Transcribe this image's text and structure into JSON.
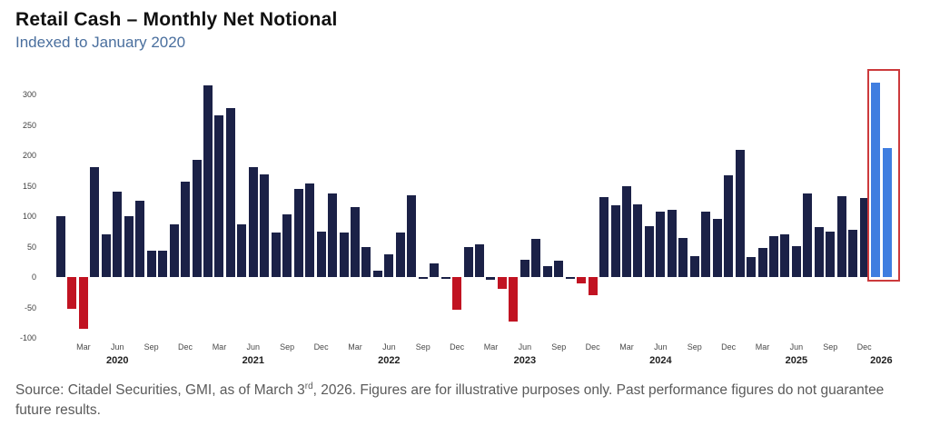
{
  "header": {
    "title": "Retail Cash – Monthly Net Notional",
    "subtitle": "Indexed to January 2020"
  },
  "chart_data": {
    "type": "bar",
    "title": "Retail Cash – Monthly Net Notional",
    "subtitle": "Indexed to January 2020",
    "x_start": "Jan 2020",
    "x_frequency": "monthly",
    "ylim": [
      -100,
      325
    ],
    "yticks": [
      300,
      250,
      200,
      150,
      100,
      50,
      0,
      -50,
      -100
    ],
    "grid": false,
    "legend_position": "none",
    "values": [
      100,
      -52,
      -85,
      180,
      70,
      140,
      100,
      125,
      44,
      44,
      86,
      157,
      193,
      315,
      265,
      278,
      86,
      180,
      169,
      73,
      103,
      145,
      154,
      74,
      137,
      73,
      115,
      50,
      10,
      38,
      73,
      135,
      -2,
      22,
      -2,
      -54,
      50,
      53,
      -4,
      -19,
      -73,
      28,
      63,
      18,
      27,
      -2,
      -10,
      -30,
      131,
      118,
      150,
      120,
      84,
      108,
      111,
      64,
      35,
      107,
      96,
      167,
      209,
      33,
      48,
      67,
      70,
      51,
      138,
      82,
      74,
      133,
      77,
      130,
      320,
      212
    ],
    "xticks": [
      {
        "index": 2,
        "label": "Mar"
      },
      {
        "index": 5,
        "label": "Jun"
      },
      {
        "index": 8,
        "label": "Sep"
      },
      {
        "index": 11,
        "label": "Dec"
      },
      {
        "index": 14,
        "label": "Mar"
      },
      {
        "index": 17,
        "label": "Jun"
      },
      {
        "index": 20,
        "label": "Sep"
      },
      {
        "index": 23,
        "label": "Dec"
      },
      {
        "index": 26,
        "label": "Mar"
      },
      {
        "index": 29,
        "label": "Jun"
      },
      {
        "index": 32,
        "label": "Sep"
      },
      {
        "index": 35,
        "label": "Dec"
      },
      {
        "index": 38,
        "label": "Mar"
      },
      {
        "index": 41,
        "label": "Jun"
      },
      {
        "index": 44,
        "label": "Sep"
      },
      {
        "index": 47,
        "label": "Dec"
      },
      {
        "index": 50,
        "label": "Mar"
      },
      {
        "index": 53,
        "label": "Jun"
      },
      {
        "index": 56,
        "label": "Sep"
      },
      {
        "index": 59,
        "label": "Dec"
      },
      {
        "index": 62,
        "label": "Mar"
      },
      {
        "index": 65,
        "label": "Jun"
      },
      {
        "index": 68,
        "label": "Sep"
      },
      {
        "index": 71,
        "label": "Dec"
      }
    ],
    "year_labels": [
      {
        "index": 5,
        "label": "2020"
      },
      {
        "index": 17,
        "label": "2021"
      },
      {
        "index": 29,
        "label": "2022"
      },
      {
        "index": 41,
        "label": "2023"
      },
      {
        "index": 53,
        "label": "2024"
      },
      {
        "index": 65,
        "label": "2025"
      },
      {
        "index": 72.5,
        "label": "2026"
      }
    ],
    "highlight_indices": [
      72,
      73
    ],
    "colors": {
      "positive": "#1b2147",
      "negative": "#c11322",
      "highlight": "#3f7ee0",
      "highlight_box_border": "#cc3a3c"
    }
  },
  "footer": {
    "text_pre": "Source: Citadel Securities, GMI, as of March 3",
    "superscript": "rd",
    "text_post": ", 2026. Figures are for illustrative purposes only. Past performance figures do not guarantee future results."
  }
}
